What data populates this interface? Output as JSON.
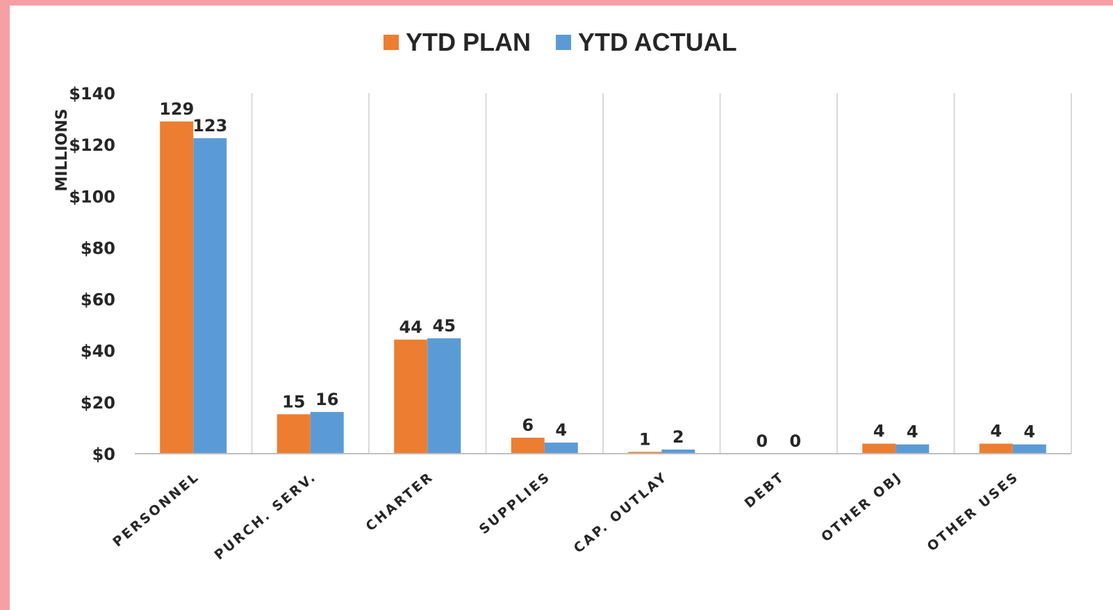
{
  "chart_data": {
    "type": "bar",
    "categories": [
      "PERSONNEL",
      "PURCH. SERV.",
      "CHARTER",
      "SUPPLIES",
      "CAP. OUTLAY",
      "DEBT",
      "OTHER OBJ",
      "OTHER USES"
    ],
    "series": [
      {
        "name": "YTD PLAN",
        "color": "#ed7d31",
        "values": [
          129,
          15,
          44,
          6,
          1,
          0,
          4,
          4
        ]
      },
      {
        "name": "YTD ACTUAL",
        "color": "#5b9bd5",
        "values": [
          123,
          16,
          45,
          4,
          2,
          0,
          4,
          4
        ]
      }
    ],
    "plotted_values": {
      "YTD PLAN": [
        129,
        15.3,
        44.3,
        6.2,
        0.7,
        0,
        3.9,
        3.9
      ],
      "YTD ACTUAL": [
        122.5,
        16.2,
        44.8,
        4.3,
        1.6,
        0,
        3.6,
        3.6
      ]
    },
    "ylabel": "MILLIONS",
    "ylim": [
      0,
      140
    ],
    "yticks": [
      "$0",
      "$20",
      "$40",
      "$60",
      "$80",
      "$100",
      "$120",
      "$140"
    ],
    "ytick_values": [
      0,
      20,
      40,
      60,
      80,
      100,
      120,
      140
    ],
    "grid": "vertical-category-separators",
    "legend_position": "top-center"
  }
}
